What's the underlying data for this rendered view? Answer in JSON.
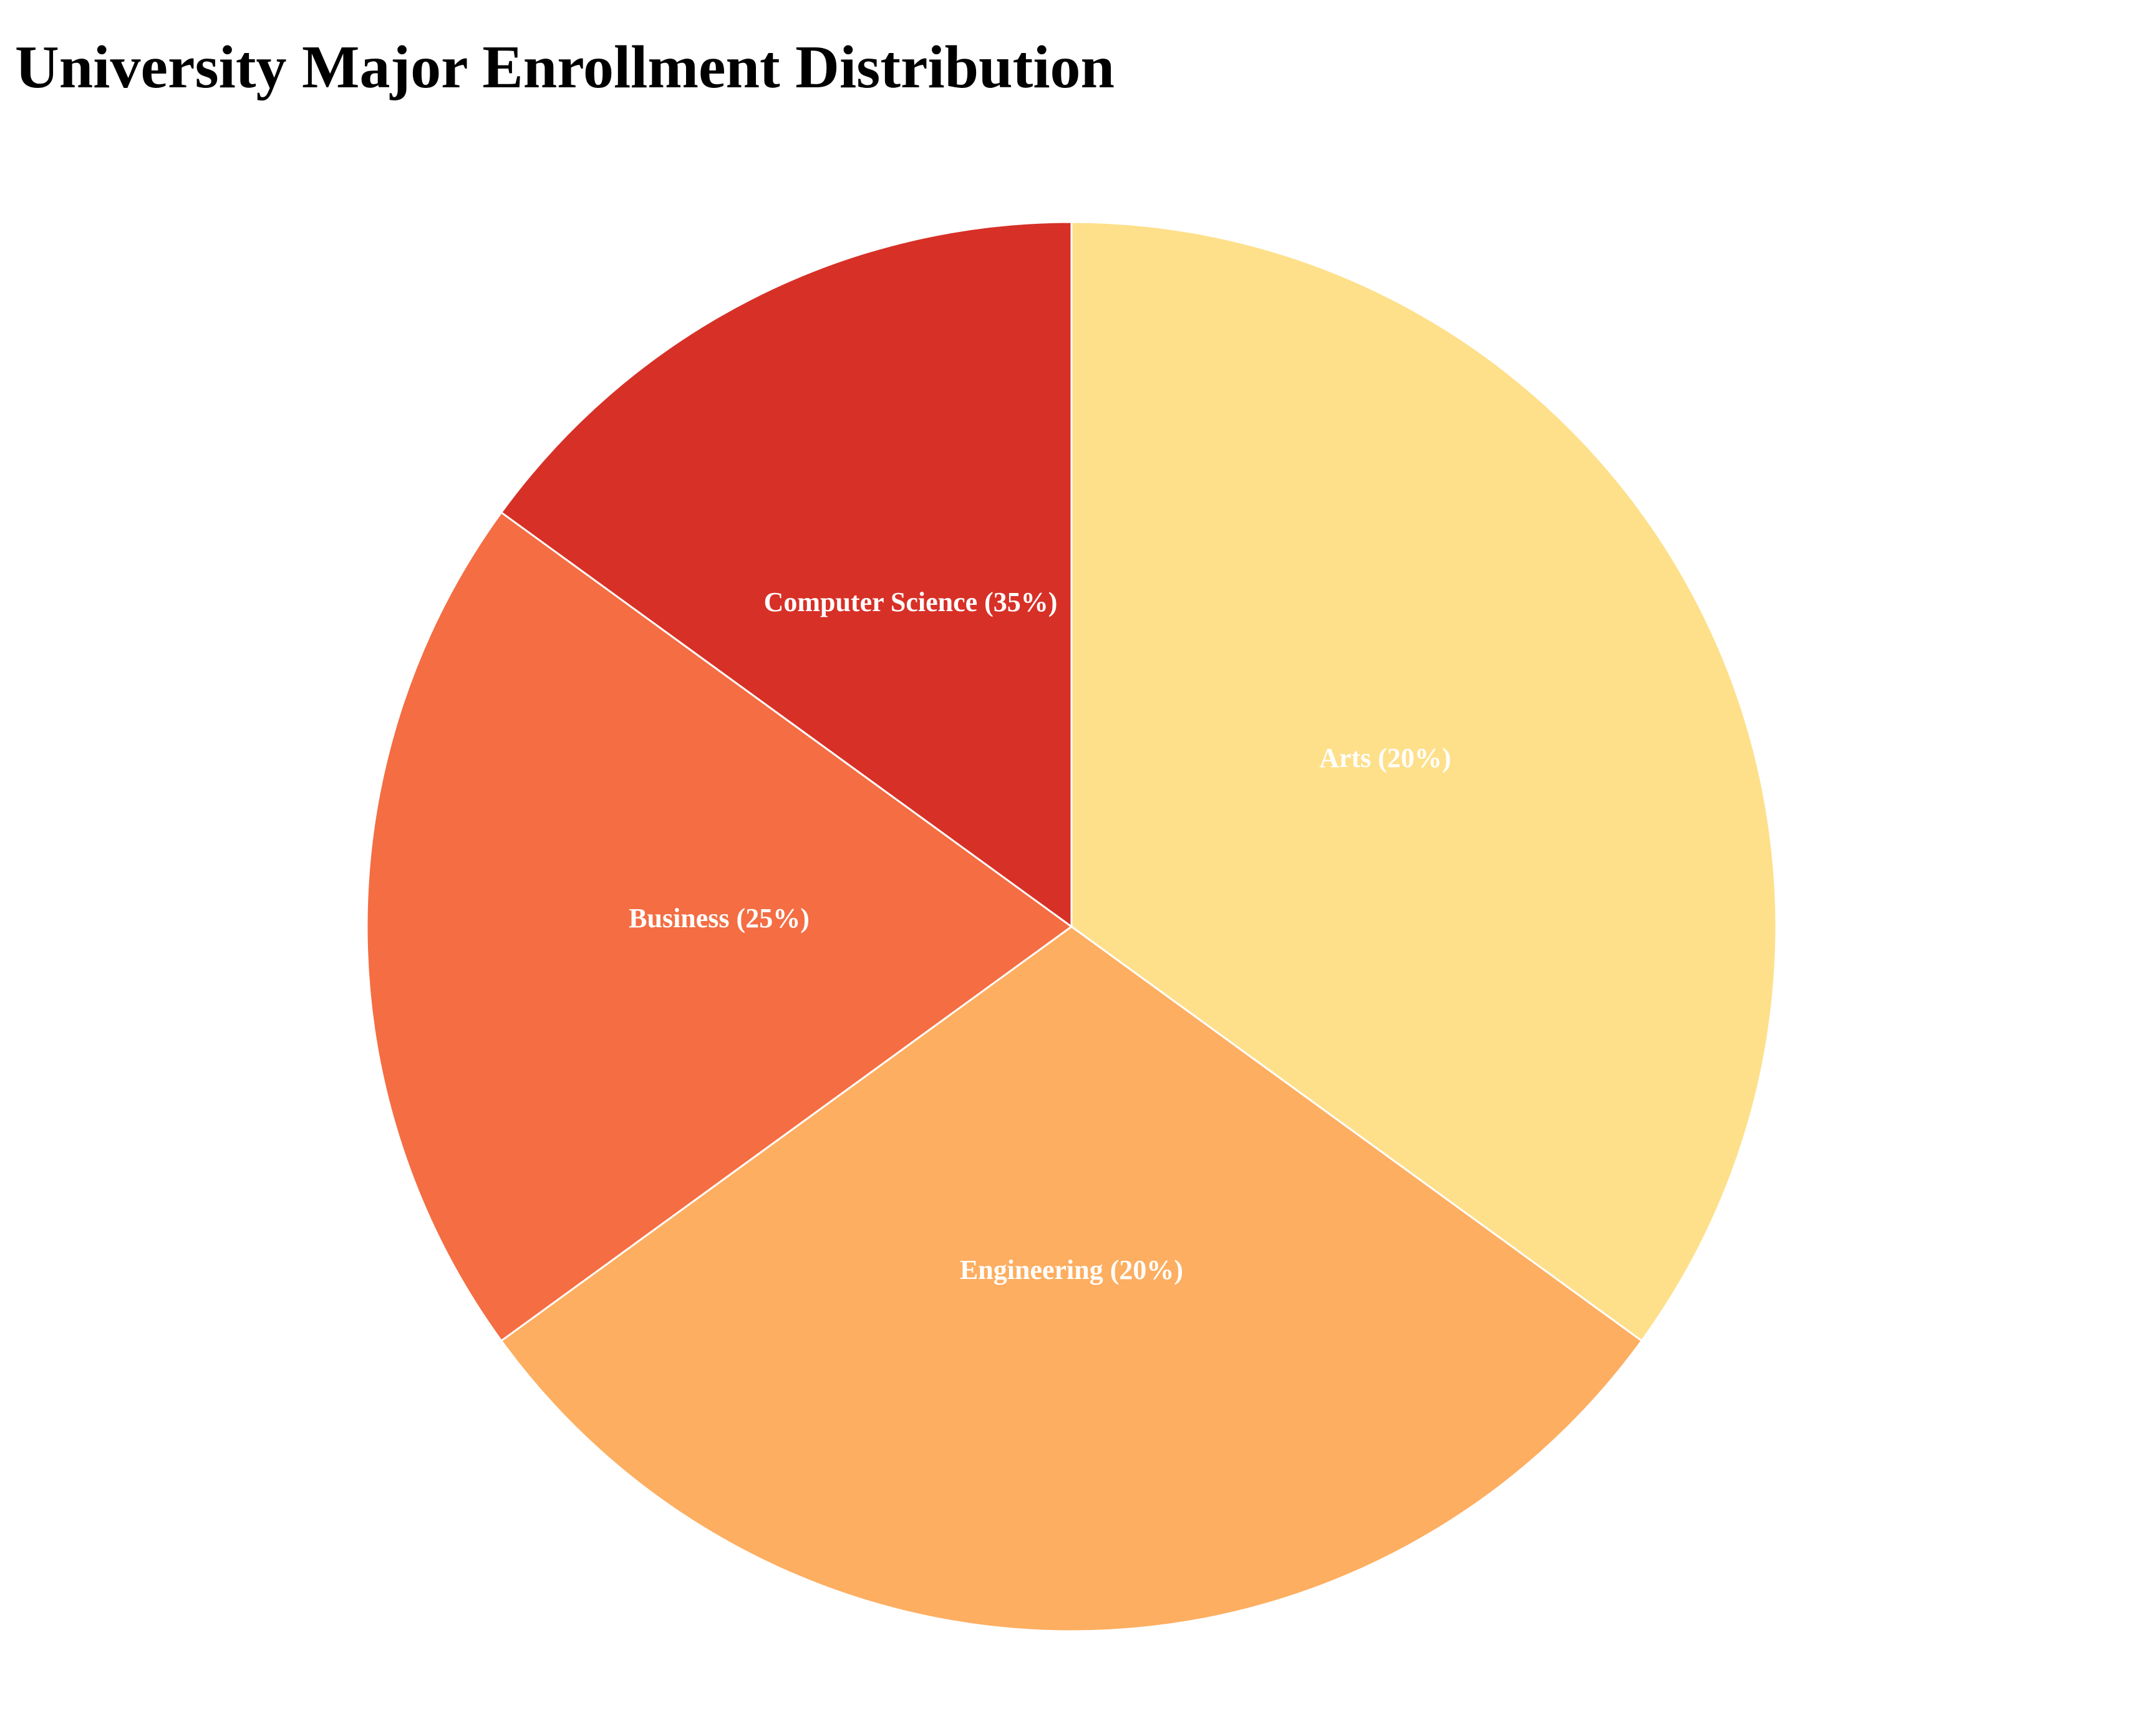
{
  "chart_data": {
    "type": "pie",
    "title": "University Major Enrollment Distribution",
    "slices": [
      {
        "label": "Arts (20%)",
        "value": 20,
        "color": "#fee08b"
      },
      {
        "label": "Engineering (20%)",
        "value": 20,
        "color": "#fdae61"
      },
      {
        "label": "Business (25%)",
        "value": 25,
        "color": "#f46d43"
      },
      {
        "label": "Computer Science (35%)",
        "value": 35,
        "color": "#d73027"
      }
    ],
    "slice_border_color": "#ffffff",
    "label_color": "#ffffff",
    "legend": "none"
  }
}
